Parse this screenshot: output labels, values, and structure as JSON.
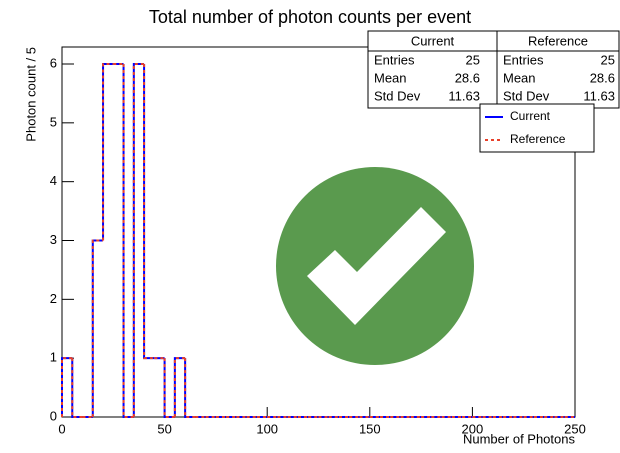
{
  "chart_data": {
    "type": "histogram",
    "title": "Total number of photon counts per event",
    "xlabel": "Number of Photons",
    "ylabel": "Photon count / 5",
    "bins": [
      0,
      5,
      10,
      15,
      20,
      25,
      30,
      35,
      40,
      45,
      50,
      55,
      60,
      65,
      70,
      75,
      80,
      85,
      90,
      95,
      100,
      105,
      110,
      115,
      120,
      125,
      130,
      135,
      140,
      145,
      150,
      155,
      160,
      165,
      170,
      175,
      180,
      185,
      190,
      195,
      200,
      205,
      210,
      215,
      220,
      225,
      230,
      235,
      240,
      245,
      250
    ],
    "series": [
      {
        "name": "Current",
        "color": "#0000ff",
        "dashed": false,
        "values": [
          1,
          0,
          0,
          3,
          6,
          6,
          0,
          6,
          1,
          1,
          0,
          1,
          0,
          0,
          0,
          0,
          0,
          0,
          0,
          0,
          0,
          0,
          0,
          0,
          0,
          0,
          0,
          0,
          0,
          0,
          0,
          0,
          0,
          0,
          0,
          0,
          0,
          0,
          0,
          0,
          0,
          0,
          0,
          0,
          0,
          0,
          0,
          0,
          0,
          0
        ]
      },
      {
        "name": "Reference",
        "color": "#e8402a",
        "dashed": true,
        "values": [
          1,
          0,
          0,
          3,
          6,
          6,
          0,
          6,
          1,
          1,
          0,
          1,
          0,
          0,
          0,
          0,
          0,
          0,
          0,
          0,
          0,
          0,
          0,
          0,
          0,
          0,
          0,
          0,
          0,
          0,
          0,
          0,
          0,
          0,
          0,
          0,
          0,
          0,
          0,
          0,
          0,
          0,
          0,
          0,
          0,
          0,
          0,
          0,
          0,
          0
        ]
      }
    ],
    "xlim": [
      0,
      250
    ],
    "xticks": [
      0,
      50,
      100,
      150,
      200,
      250
    ],
    "ylim": [
      0,
      6
    ],
    "yticks": [
      0,
      1,
      2,
      3,
      4,
      5,
      6
    ],
    "stats": [
      {
        "name": "Current",
        "rows": [
          [
            "Entries",
            "25"
          ],
          [
            "Mean",
            "28.6"
          ],
          [
            "Std Dev",
            "11.63"
          ]
        ]
      },
      {
        "name": "Reference",
        "rows": [
          [
            "Entries",
            "25"
          ],
          [
            "Mean",
            "28.6"
          ],
          [
            "Std Dev",
            "11.63"
          ]
        ]
      }
    ]
  }
}
